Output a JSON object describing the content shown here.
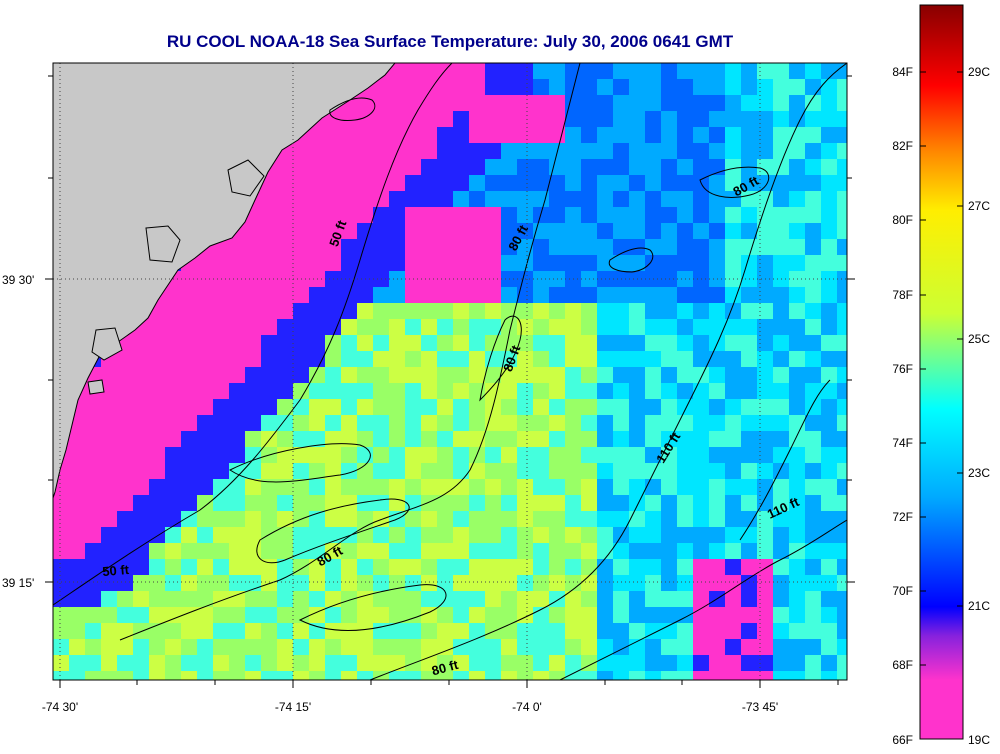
{
  "title": "RU COOL  NOAA-18  Sea Surface Temperature:  July 30, 2006 0641 GMT",
  "map": {
    "lon_ticks": [
      "-74 30'",
      "-74 15'",
      "-74 0'",
      "-73 45'"
    ],
    "lat_ticks": [
      "39 30'",
      "39 15'"
    ],
    "land_color": "#c8c8c8",
    "grid": "dotted",
    "contours": [
      {
        "label": "50 ft",
        "rotation": -70
      },
      {
        "label": "80 ft",
        "rotation": -62
      },
      {
        "label": "80 ft",
        "rotation": -70
      },
      {
        "label": "80 ft",
        "rotation": -30
      },
      {
        "label": "110 ft",
        "rotation": -58
      },
      {
        "label": "80 ft",
        "rotation": -30
      },
      {
        "label": "110 ft",
        "rotation": -25
      },
      {
        "label": "50 ft",
        "rotation": -5
      },
      {
        "label": "80 ft",
        "rotation": -15
      }
    ]
  },
  "colorbar": {
    "f_ticks": [
      "84F",
      "82F",
      "80F",
      "78F",
      "76F",
      "74F",
      "72F",
      "70F",
      "68F",
      "66F"
    ],
    "c_ticks": [
      "29C",
      "27C",
      "25C",
      "23C",
      "21C",
      "19C"
    ],
    "stops": [
      "#ff33cc",
      "#aa22dd",
      "#0000ff",
      "#00aaff",
      "#00ffff",
      "#ccff33",
      "#ffff00",
      "#ff8800",
      "#ff0000",
      "#880000"
    ]
  }
}
